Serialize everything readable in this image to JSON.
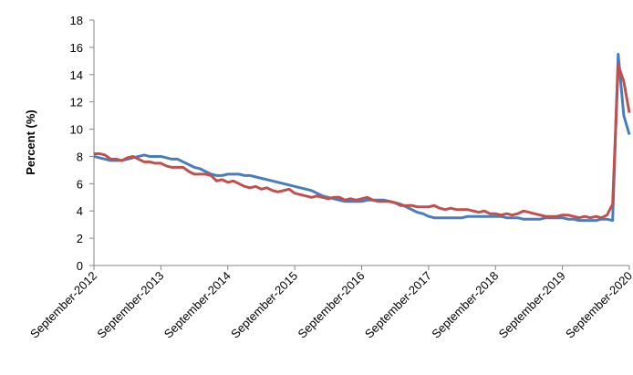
{
  "chart_data": {
    "type": "line",
    "y_label": "Percent (%)",
    "categories": [
      "September-2012",
      null,
      null,
      null,
      null,
      null,
      null,
      null,
      null,
      null,
      null,
      null,
      "September-2013",
      null,
      null,
      null,
      null,
      null,
      null,
      null,
      null,
      null,
      null,
      null,
      "September-2014",
      null,
      null,
      null,
      null,
      null,
      null,
      null,
      null,
      null,
      null,
      null,
      "September-2015",
      null,
      null,
      null,
      null,
      null,
      null,
      null,
      null,
      null,
      null,
      null,
      "September-2016",
      null,
      null,
      null,
      null,
      null,
      null,
      null,
      null,
      null,
      null,
      null,
      "September-2017",
      null,
      null,
      null,
      null,
      null,
      null,
      null,
      null,
      null,
      null,
      null,
      "September-2018",
      null,
      null,
      null,
      null,
      null,
      null,
      null,
      null,
      null,
      null,
      null,
      "September-2019",
      null,
      null,
      null,
      null,
      null,
      null,
      null,
      null,
      null,
      null,
      null,
      "September-2020"
    ],
    "series": [
      {
        "color": "#4a7ebb",
        "values": [
          8.0,
          7.9,
          7.8,
          7.7,
          7.7,
          7.7,
          7.8,
          7.9,
          8.0,
          8.1,
          8.0,
          8.0,
          8.0,
          7.9,
          7.8,
          7.8,
          7.6,
          7.4,
          7.2,
          7.1,
          6.9,
          6.7,
          6.6,
          6.6,
          6.7,
          6.7,
          6.7,
          6.6,
          6.6,
          6.5,
          6.4,
          6.3,
          6.2,
          6.1,
          6.0,
          5.9,
          5.8,
          5.7,
          5.6,
          5.5,
          5.3,
          5.1,
          5.0,
          4.9,
          4.8,
          4.7,
          4.7,
          4.7,
          4.7,
          4.8,
          4.8,
          4.8,
          4.8,
          4.7,
          4.6,
          4.5,
          4.3,
          4.1,
          3.9,
          3.8,
          3.6,
          3.5,
          3.5,
          3.5,
          3.5,
          3.5,
          3.5,
          3.6,
          3.6,
          3.6,
          3.6,
          3.6,
          3.6,
          3.6,
          3.5,
          3.5,
          3.5,
          3.4,
          3.4,
          3.4,
          3.4,
          3.5,
          3.5,
          3.5,
          3.5,
          3.4,
          3.4,
          3.3,
          3.3,
          3.3,
          3.3,
          3.4,
          3.4,
          3.3,
          15.5,
          11.0,
          9.6
        ]
      },
      {
        "color": "#c0504d",
        "values": [
          8.2,
          8.2,
          8.1,
          7.8,
          7.8,
          7.7,
          7.9,
          8.0,
          7.8,
          7.6,
          7.6,
          7.5,
          7.5,
          7.3,
          7.2,
          7.2,
          7.2,
          6.9,
          6.7,
          6.7,
          6.7,
          6.6,
          6.2,
          6.3,
          6.1,
          6.2,
          6.0,
          5.8,
          5.7,
          5.8,
          5.6,
          5.7,
          5.5,
          5.4,
          5.5,
          5.6,
          5.3,
          5.2,
          5.1,
          5.0,
          5.1,
          5.0,
          4.9,
          5.0,
          5.0,
          4.8,
          4.9,
          4.8,
          4.9,
          5.0,
          4.8,
          4.7,
          4.7,
          4.7,
          4.6,
          4.4,
          4.4,
          4.4,
          4.3,
          4.3,
          4.3,
          4.4,
          4.2,
          4.1,
          4.2,
          4.1,
          4.1,
          4.1,
          4.0,
          3.9,
          4.0,
          3.8,
          3.8,
          3.7,
          3.8,
          3.7,
          3.8,
          4.0,
          3.9,
          3.8,
          3.7,
          3.6,
          3.6,
          3.6,
          3.7,
          3.7,
          3.6,
          3.5,
          3.6,
          3.5,
          3.6,
          3.5,
          3.7,
          4.5,
          14.7,
          13.5,
          11.2
        ]
      }
    ],
    "ylim": [
      0,
      18
    ],
    "yticks": [
      0,
      2,
      4,
      6,
      8,
      10,
      12,
      14,
      16,
      18
    ],
    "grid": false
  }
}
